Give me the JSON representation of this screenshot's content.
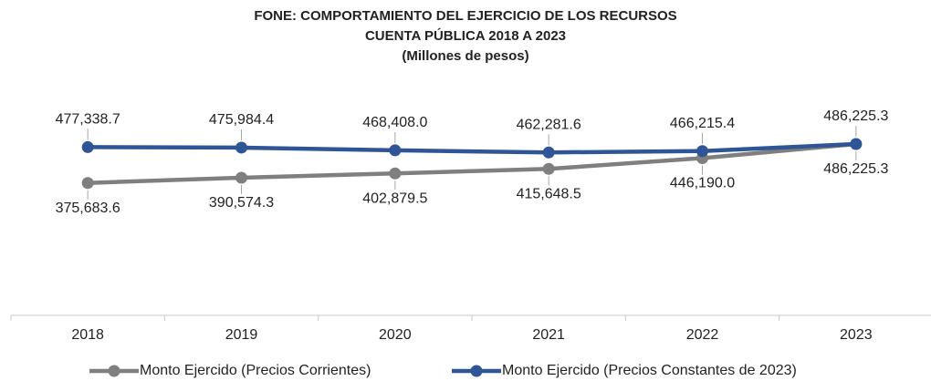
{
  "chart_data": {
    "type": "line",
    "title": "FONE: COMPORTAMIENTO DEL EJERCICIO DE LOS RECURSOS",
    "subtitle": "CUENTA PÚBLICA 2018 A 2023",
    "unit_note": "(Millones de pesos)",
    "categories": [
      "2018",
      "2019",
      "2020",
      "2021",
      "2022",
      "2023"
    ],
    "ylim": [
      0,
      600000
    ],
    "legend": "bottom",
    "series": [
      {
        "name": "Monto Ejercido (Precios Corrientes)",
        "color": "#7f7f7f",
        "values": [
          375683.6,
          390574.3,
          402879.5,
          415648.5,
          446190.0,
          486225.3
        ],
        "value_labels": [
          "375,683.6",
          "390,574.3",
          "402,879.5",
          "415,648.5",
          "446,190.0",
          "486,225.3"
        ]
      },
      {
        "name": "Monto Ejercido (Precios Constantes de 2023)",
        "color": "#2f5597",
        "values": [
          477338.7,
          475984.4,
          468408.0,
          462281.6,
          466215.4,
          486225.3
        ],
        "value_labels": [
          "477,338.7",
          "475,984.4",
          "468,408.0",
          "462,281.6",
          "466,215.4",
          "486,225.3"
        ]
      }
    ]
  }
}
